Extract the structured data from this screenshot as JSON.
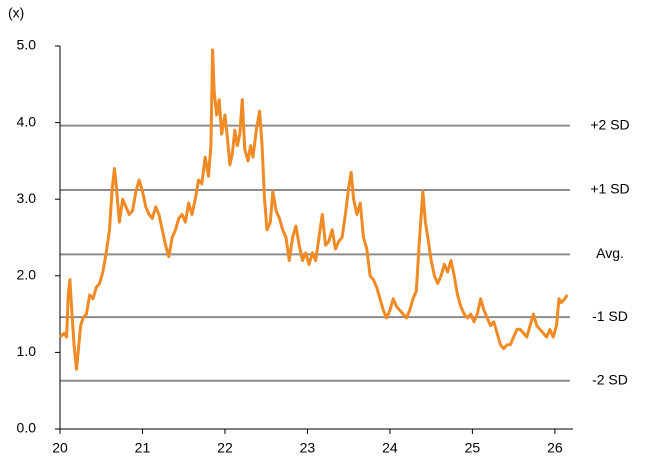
{
  "chart_data": {
    "type": "line",
    "y_axis_label": "(x)",
    "x": [
      20.0,
      20.05,
      20.08,
      20.1,
      20.12,
      20.14,
      20.17,
      20.2,
      20.22,
      20.25,
      20.28,
      20.32,
      20.36,
      20.4,
      20.44,
      20.48,
      20.52,
      20.56,
      20.6,
      20.63,
      20.66,
      20.68,
      20.72,
      20.76,
      20.8,
      20.84,
      20.88,
      20.92,
      20.96,
      21.0,
      21.04,
      21.08,
      21.12,
      21.16,
      21.2,
      21.24,
      21.28,
      21.32,
      21.36,
      21.4,
      21.44,
      21.48,
      21.52,
      21.56,
      21.6,
      21.64,
      21.68,
      21.72,
      21.76,
      21.8,
      21.83,
      21.85,
      21.87,
      21.9,
      21.93,
      21.96,
      22.0,
      22.03,
      22.06,
      22.09,
      22.12,
      22.15,
      22.18,
      22.21,
      22.24,
      22.28,
      22.31,
      22.34,
      22.38,
      22.42,
      22.45,
      22.48,
      22.51,
      22.55,
      22.58,
      22.62,
      22.66,
      22.7,
      22.74,
      22.78,
      22.82,
      22.86,
      22.9,
      22.94,
      22.98,
      23.02,
      23.06,
      23.1,
      23.14,
      23.18,
      23.22,
      23.26,
      23.3,
      23.34,
      23.38,
      23.42,
      23.46,
      23.5,
      23.53,
      23.56,
      23.6,
      23.64,
      23.68,
      23.72,
      23.76,
      23.8,
      23.84,
      23.88,
      23.92,
      23.96,
      24.0,
      24.04,
      24.08,
      24.12,
      24.16,
      24.2,
      24.24,
      24.28,
      24.32,
      24.36,
      24.4,
      24.43,
      24.46,
      24.5,
      24.54,
      24.58,
      24.62,
      24.66,
      24.7,
      24.74,
      24.78,
      24.82,
      24.86,
      24.9,
      24.94,
      24.98,
      25.02,
      25.06,
      25.1,
      25.14,
      25.18,
      25.22,
      25.26,
      25.3,
      25.34,
      25.38,
      25.42,
      25.46,
      25.5,
      25.54,
      25.58,
      25.62,
      25.66,
      25.7,
      25.74,
      25.78,
      25.82,
      25.86,
      25.9,
      25.94,
      25.98,
      26.02,
      26.05,
      26.08,
      26.12,
      26.15
    ],
    "values": [
      1.2,
      1.25,
      1.2,
      1.75,
      1.95,
      1.6,
      1.1,
      0.78,
      1.0,
      1.35,
      1.45,
      1.5,
      1.75,
      1.7,
      1.85,
      1.9,
      2.05,
      2.3,
      2.6,
      3.1,
      3.4,
      3.2,
      2.7,
      3.0,
      2.9,
      2.8,
      2.85,
      3.1,
      3.25,
      3.1,
      2.9,
      2.8,
      2.75,
      2.9,
      2.8,
      2.6,
      2.4,
      2.25,
      2.5,
      2.6,
      2.75,
      2.8,
      2.7,
      2.95,
      2.8,
      3.0,
      3.25,
      3.2,
      3.55,
      3.3,
      3.7,
      4.95,
      4.4,
      4.1,
      4.3,
      3.85,
      4.1,
      3.8,
      3.45,
      3.6,
      3.9,
      3.7,
      3.85,
      4.3,
      3.65,
      3.5,
      3.7,
      3.55,
      3.9,
      4.15,
      3.7,
      3.0,
      2.6,
      2.7,
      3.1,
      2.85,
      2.75,
      2.6,
      2.5,
      2.2,
      2.5,
      2.65,
      2.4,
      2.2,
      2.3,
      2.15,
      2.3,
      2.2,
      2.5,
      2.8,
      2.4,
      2.45,
      2.6,
      2.35,
      2.45,
      2.5,
      2.8,
      3.15,
      3.35,
      3.0,
      2.8,
      2.95,
      2.5,
      2.35,
      2.0,
      1.95,
      1.85,
      1.7,
      1.55,
      1.45,
      1.55,
      1.7,
      1.6,
      1.55,
      1.5,
      1.45,
      1.55,
      1.7,
      1.8,
      2.5,
      3.1,
      2.7,
      2.5,
      2.2,
      2.0,
      1.9,
      2.0,
      2.15,
      2.05,
      2.2,
      2.0,
      1.75,
      1.6,
      1.5,
      1.45,
      1.5,
      1.4,
      1.5,
      1.7,
      1.55,
      1.45,
      1.35,
      1.4,
      1.25,
      1.1,
      1.05,
      1.1,
      1.1,
      1.2,
      1.3,
      1.3,
      1.25,
      1.2,
      1.35,
      1.5,
      1.35,
      1.3,
      1.25,
      1.2,
      1.3,
      1.2,
      1.35,
      1.7,
      1.65,
      1.7,
      1.75
    ],
    "color": "#f08a24",
    "xlim": [
      20,
      26.22
    ],
    "xticks": [
      20,
      21,
      22,
      23,
      24,
      25,
      26
    ],
    "ylim": [
      0,
      5
    ],
    "yticks": [
      {
        "value": 0,
        "label": "0.0"
      },
      {
        "value": 1,
        "label": "1.0"
      },
      {
        "value": 2,
        "label": "2.0"
      },
      {
        "value": 3,
        "label": "3.0"
      },
      {
        "value": 4,
        "label": "4.0"
      },
      {
        "value": 5,
        "label": "5.0"
      }
    ],
    "reference_lines": [
      {
        "label": "+2 SD",
        "value": 3.96
      },
      {
        "label": "+1 SD",
        "value": 3.12
      },
      {
        "label": "Avg.",
        "value": 2.28
      },
      {
        "label": "-1 SD",
        "value": 1.46
      },
      {
        "label": "-2 SD",
        "value": 0.63
      }
    ],
    "reference_color": "#8c8c8c"
  }
}
